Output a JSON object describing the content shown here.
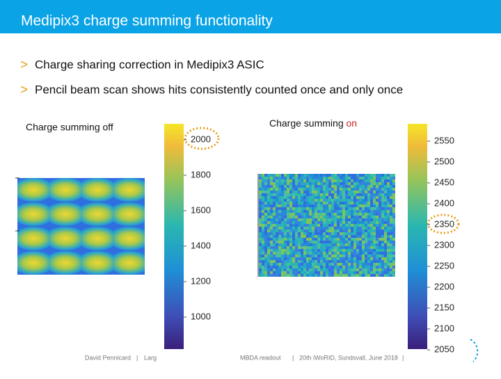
{
  "header": {
    "title": "Medipix3 charge summing functionality"
  },
  "bullets": [
    "Charge sharing correction in Medipix3 ASIC",
    "Pencil beam scan shows hits consistently counted once and only once"
  ],
  "left_panel": {
    "label": "Charge summing off",
    "colorbar_ticks": [
      2000,
      1800,
      1600,
      1400,
      1200,
      1000
    ]
  },
  "right_panel": {
    "label": "Charge summing ",
    "label_highlight": "on",
    "colorbar_ticks": [
      2550,
      2500,
      2450,
      2400,
      2350,
      2300,
      2250,
      2200,
      2150,
      2100,
      2050
    ]
  },
  "footer": {
    "author": "David Pennicard",
    "part1": "Larg",
    "part2": "MBDA readout",
    "event": "20th iWoRID, Sundsvall, June 2018"
  }
}
